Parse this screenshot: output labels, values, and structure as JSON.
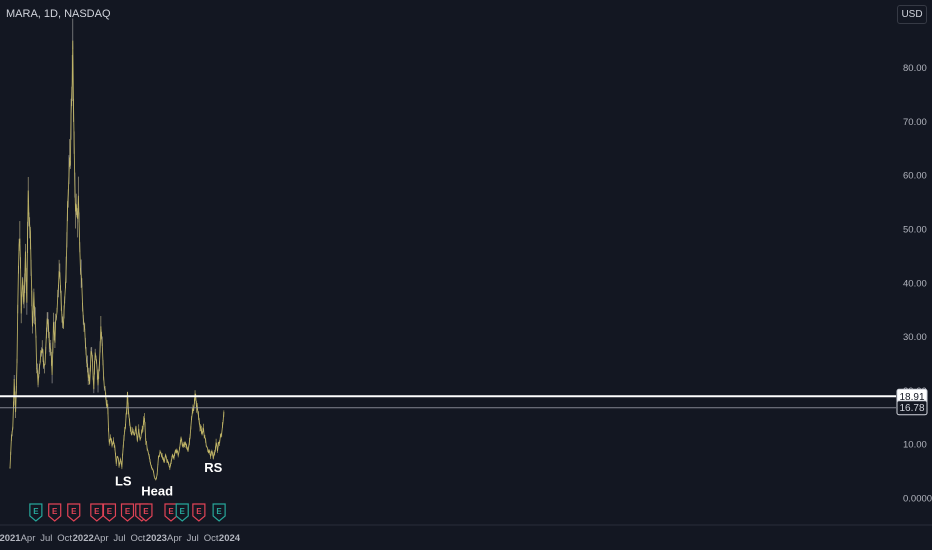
{
  "header": {
    "title": "MARA, 1D, NASDAQ",
    "currency": "USD"
  },
  "colors": {
    "background": "#131722",
    "price_line": "#c9bc6a",
    "bar_early": "#a8a07a",
    "horizontal_line": "#ffffff",
    "secondary_line": "#b2b5be",
    "earnings_red": "#e04356",
    "earnings_green": "#26a69a"
  },
  "chart_data": {
    "type": "line",
    "symbol": "MARA",
    "interval": "1D",
    "exchange": "NASDAQ",
    "y_axis": {
      "ticks": [
        "80.00",
        "70.00",
        "60.00",
        "50.00",
        "40.00",
        "30.00",
        "20.00",
        "10.00",
        "0.0000"
      ],
      "range": [
        0,
        86
      ],
      "partially_hidden_tick": "20.00"
    },
    "x_axis": {
      "ticks": [
        "2021",
        "Apr",
        "Jul",
        "Oct",
        "2022",
        "Apr",
        "Jul",
        "Oct",
        "2023",
        "Apr",
        "Jul",
        "Oct",
        "2024"
      ],
      "bold_ticks": [
        "2021",
        "2022",
        "2023",
        "2024"
      ],
      "range": [
        "2021-01-01",
        "2024-01-20"
      ]
    },
    "series": [
      {
        "values": [
          [
            "2021-01-01",
            5.5
          ],
          [
            "2021-01-08",
            11.5
          ],
          [
            "2021-01-15",
            13.0
          ],
          [
            "2021-01-22",
            22.0
          ],
          [
            "2021-01-29",
            16.5
          ],
          [
            "2021-02-05",
            25.0
          ],
          [
            "2021-02-12",
            42.0
          ],
          [
            "2021-02-19",
            50.0
          ],
          [
            "2021-02-26",
            34.0
          ],
          [
            "2021-03-05",
            41.0
          ],
          [
            "2021-03-12",
            35.0
          ],
          [
            "2021-03-19",
            46.0
          ],
          [
            "2021-03-26",
            37.0
          ],
          [
            "2021-04-02",
            56.0
          ],
          [
            "2021-04-09",
            52.0
          ],
          [
            "2021-04-16",
            45.0
          ],
          [
            "2021-04-23",
            32.0
          ],
          [
            "2021-04-30",
            37.0
          ],
          [
            "2021-05-07",
            33.0
          ],
          [
            "2021-05-14",
            25.0
          ],
          [
            "2021-05-21",
            21.0
          ],
          [
            "2021-05-28",
            25.0
          ],
          [
            "2021-06-04",
            27.0
          ],
          [
            "2021-06-11",
            29.0
          ],
          [
            "2021-06-18",
            24.0
          ],
          [
            "2021-06-25",
            26.0
          ],
          [
            "2021-07-02",
            31.0
          ],
          [
            "2021-07-09",
            33.5
          ],
          [
            "2021-07-16",
            29.0
          ],
          [
            "2021-07-23",
            27.0
          ],
          [
            "2021-07-30",
            23.0
          ],
          [
            "2021-08-06",
            32.0
          ],
          [
            "2021-08-13",
            30.0
          ],
          [
            "2021-08-20",
            33.0
          ],
          [
            "2021-08-27",
            36.0
          ],
          [
            "2021-09-03",
            43.0
          ],
          [
            "2021-09-10",
            38.0
          ],
          [
            "2021-09-17",
            35.0
          ],
          [
            "2021-09-24",
            32.0
          ],
          [
            "2021-10-01",
            36.0
          ],
          [
            "2021-10-08",
            44.0
          ],
          [
            "2021-10-15",
            55.0
          ],
          [
            "2021-10-22",
            58.0
          ],
          [
            "2021-10-29",
            64.0
          ],
          [
            "2021-11-05",
            76.0
          ],
          [
            "2021-11-10",
            83.0
          ],
          [
            "2021-11-17",
            63.0
          ],
          [
            "2021-11-24",
            55.0
          ],
          [
            "2021-12-01",
            52.0
          ],
          [
            "2021-12-08",
            55.0
          ],
          [
            "2021-12-15",
            45.0
          ],
          [
            "2021-12-22",
            42.0
          ],
          [
            "2021-12-29",
            36.0
          ],
          [
            "2022-01-05",
            32.0
          ],
          [
            "2022-01-12",
            30.0
          ],
          [
            "2022-01-19",
            26.0
          ],
          [
            "2022-01-26",
            23.0
          ],
          [
            "2022-02-02",
            21.0
          ],
          [
            "2022-02-09",
            27.0
          ],
          [
            "2022-02-16",
            25.0
          ],
          [
            "2022-02-23",
            21.0
          ],
          [
            "2022-03-02",
            28.0
          ],
          [
            "2022-03-09",
            26.0
          ],
          [
            "2022-03-16",
            21.0
          ],
          [
            "2022-03-23",
            25.0
          ],
          [
            "2022-03-30",
            32.0
          ],
          [
            "2022-04-06",
            28.0
          ],
          [
            "2022-04-13",
            22.0
          ],
          [
            "2022-04-20",
            20.0
          ],
          [
            "2022-04-27",
            18.0
          ],
          [
            "2022-05-04",
            16.0
          ],
          [
            "2022-05-11",
            10.0
          ],
          [
            "2022-05-18",
            11.5
          ],
          [
            "2022-05-25",
            10.0
          ],
          [
            "2022-06-01",
            11.0
          ],
          [
            "2022-06-08",
            9.5
          ],
          [
            "2022-06-15",
            6.5
          ],
          [
            "2022-06-22",
            8.0
          ],
          [
            "2022-06-29",
            6.0
          ],
          [
            "2022-07-06",
            7.5
          ],
          [
            "2022-07-13",
            5.5
          ],
          [
            "2022-07-20",
            10.0
          ],
          [
            "2022-07-27",
            12.0
          ],
          [
            "2022-08-03",
            15.0
          ],
          [
            "2022-08-10",
            19.0
          ],
          [
            "2022-08-17",
            15.0
          ],
          [
            "2022-08-24",
            13.0
          ],
          [
            "2022-08-31",
            11.5
          ],
          [
            "2022-09-07",
            12.5
          ],
          [
            "2022-09-14",
            12.0
          ],
          [
            "2022-09-21",
            13.5
          ],
          [
            "2022-09-28",
            11.0
          ],
          [
            "2022-10-05",
            12.5
          ],
          [
            "2022-10-12",
            10.5
          ],
          [
            "2022-10-19",
            12.0
          ],
          [
            "2022-10-26",
            13.0
          ],
          [
            "2022-11-02",
            15.0
          ],
          [
            "2022-11-09",
            11.0
          ],
          [
            "2022-11-16",
            9.0
          ],
          [
            "2022-11-23",
            8.0
          ],
          [
            "2022-11-30",
            7.0
          ],
          [
            "2022-12-07",
            6.0
          ],
          [
            "2022-12-14",
            5.5
          ],
          [
            "2022-12-21",
            4.0
          ],
          [
            "2022-12-29",
            3.5
          ],
          [
            "2023-01-05",
            4.5
          ],
          [
            "2023-01-12",
            7.5
          ],
          [
            "2023-01-19",
            8.5
          ],
          [
            "2023-01-26",
            8.0
          ],
          [
            "2023-02-02",
            7.5
          ],
          [
            "2023-02-09",
            6.5
          ],
          [
            "2023-02-16",
            8.0
          ],
          [
            "2023-02-23",
            7.0
          ],
          [
            "2023-03-02",
            6.5
          ],
          [
            "2023-03-09",
            5.5
          ],
          [
            "2023-03-16",
            7.0
          ],
          [
            "2023-03-23",
            8.0
          ],
          [
            "2023-03-30",
            7.5
          ],
          [
            "2023-04-06",
            8.5
          ],
          [
            "2023-04-13",
            9.0
          ],
          [
            "2023-04-20",
            8.0
          ],
          [
            "2023-04-27",
            9.0
          ],
          [
            "2023-05-04",
            11.5
          ],
          [
            "2023-05-11",
            10.0
          ],
          [
            "2023-05-18",
            9.5
          ],
          [
            "2023-05-25",
            10.0
          ],
          [
            "2023-06-01",
            9.5
          ],
          [
            "2023-06-08",
            9.0
          ],
          [
            "2023-06-15",
            10.5
          ],
          [
            "2023-06-22",
            13.5
          ],
          [
            "2023-06-29",
            15.5
          ],
          [
            "2023-07-06",
            17.0
          ],
          [
            "2023-07-13",
            19.0
          ],
          [
            "2023-07-20",
            17.5
          ],
          [
            "2023-07-27",
            16.0
          ],
          [
            "2023-08-03",
            14.5
          ],
          [
            "2023-08-10",
            13.0
          ],
          [
            "2023-08-17",
            11.5
          ],
          [
            "2023-08-24",
            13.0
          ],
          [
            "2023-08-31",
            11.0
          ],
          [
            "2023-09-07",
            10.0
          ],
          [
            "2023-09-14",
            9.0
          ],
          [
            "2023-09-21",
            8.5
          ],
          [
            "2023-09-28",
            8.0
          ],
          [
            "2023-10-05",
            8.5
          ],
          [
            "2023-10-12",
            7.5
          ],
          [
            "2023-10-19",
            8.5
          ],
          [
            "2023-10-26",
            10.0
          ],
          [
            "2023-11-02",
            9.0
          ],
          [
            "2023-11-09",
            10.5
          ],
          [
            "2023-11-16",
            11.0
          ],
          [
            "2023-11-23",
            12.5
          ],
          [
            "2023-11-30",
            14.5
          ],
          [
            "2023-12-07",
            17.0
          ]
        ]
      }
    ],
    "horizontal_lines": [
      {
        "value": 18.91,
        "label": "18.91",
        "style": "thick-white"
      },
      {
        "value": 16.78,
        "label": "16.78",
        "style": "thin-gray"
      }
    ],
    "annotations": [
      {
        "text": "LS",
        "x": "2022-07-20",
        "y": 2.3
      },
      {
        "text": "Head",
        "x": "2023-01-05",
        "y": 0.5
      },
      {
        "text": "RS",
        "x": "2023-10-12",
        "y": 4.8
      }
    ],
    "earnings_events": [
      {
        "date": "2021-05-10",
        "color": "green",
        "label": "E"
      },
      {
        "date": "2021-08-12",
        "color": "red",
        "label": "E"
      },
      {
        "date": "2021-11-15",
        "color": "red",
        "label": "E"
      },
      {
        "date": "2022-03-10",
        "color": "red",
        "label": "E"
      },
      {
        "date": "2022-05-12",
        "color": "red",
        "label": "E"
      },
      {
        "date": "2022-08-10",
        "color": "red",
        "label": "E"
      },
      {
        "date": "2022-10-20",
        "color": "red",
        "label": "E"
      },
      {
        "date": "2022-11-10",
        "color": "red",
        "label": "E"
      },
      {
        "date": "2023-03-15",
        "color": "red",
        "label": "E"
      },
      {
        "date": "2023-05-10",
        "color": "green",
        "label": "E"
      },
      {
        "date": "2023-08-01",
        "color": "red",
        "label": "E"
      },
      {
        "date": "2023-11-10",
        "color": "green",
        "label": "E"
      }
    ],
    "grid": false,
    "legend": "none"
  }
}
